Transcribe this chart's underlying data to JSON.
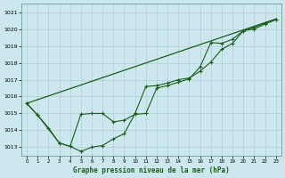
{
  "xlabel": "Graphe pression niveau de la mer (hPa)",
  "background_color": "#cce8ee",
  "line_color": "#1a5c1a",
  "xlim": [
    -0.5,
    23.5
  ],
  "ylim": [
    1012.5,
    1021.5
  ],
  "yticks": [
    1013,
    1014,
    1015,
    1016,
    1017,
    1018,
    1019,
    1020,
    1021
  ],
  "xticks": [
    0,
    1,
    2,
    3,
    4,
    5,
    6,
    7,
    8,
    9,
    10,
    11,
    12,
    13,
    14,
    15,
    16,
    17,
    18,
    19,
    20,
    21,
    22,
    23
  ],
  "line_straight": {
    "x": [
      0,
      23
    ],
    "y": [
      1015.6,
      1020.6
    ]
  },
  "line_top": {
    "x": [
      0,
      1,
      2,
      3,
      4,
      5,
      6,
      7,
      8,
      9,
      10,
      11,
      12,
      13,
      14,
      15,
      16,
      17,
      18,
      19,
      20,
      21,
      22,
      23
    ],
    "y": [
      1015.6,
      1014.9,
      1014.15,
      1013.25,
      1013.05,
      1012.75,
      1013.0,
      1013.1,
      1013.5,
      1013.8,
      1015.0,
      1016.6,
      1016.65,
      1016.8,
      1017.0,
      1017.1,
      1017.5,
      1018.05,
      1018.8,
      1019.15,
      1019.9,
      1020.0,
      1020.3,
      1020.55
    ]
  },
  "line_bottom": {
    "x": [
      0,
      1,
      3,
      4,
      5,
      6,
      7,
      8,
      9,
      10,
      11,
      12,
      13,
      14,
      15,
      16,
      17,
      18,
      19,
      20,
      21,
      22,
      23
    ],
    "y": [
      1015.6,
      1014.9,
      1013.25,
      1013.05,
      1014.95,
      1015.0,
      1015.0,
      1014.5,
      1014.6,
      1014.95,
      1015.0,
      1016.5,
      1016.65,
      1016.85,
      1017.05,
      1017.75,
      1019.2,
      1019.15,
      1019.4,
      1019.9,
      1020.1,
      1020.35,
      1020.55
    ]
  }
}
